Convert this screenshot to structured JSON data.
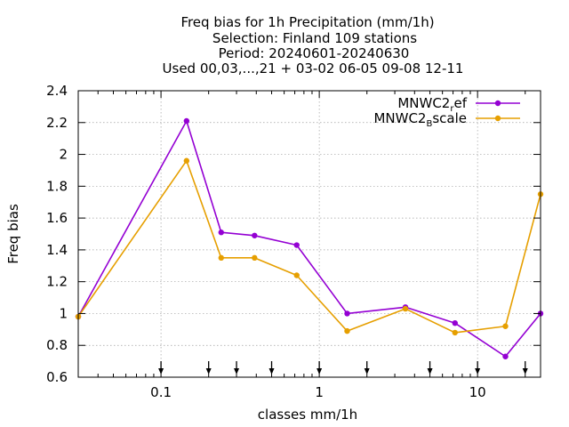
{
  "chart_data": {
    "type": "line",
    "title_lines": [
      "Freq bias  for 1h Precipitation (mm/1h)",
      "Selection: Finland     109 stations",
      "Period: 20240601-20240630",
      "Used 00,03,...,21 + 03-02 06-05 09-08 12-11"
    ],
    "xlabel": "classes mm/1h",
    "ylabel": "Freq bias",
    "xscale": "log",
    "xlim": [
      0.03,
      25
    ],
    "ylim": [
      0.6,
      2.4
    ],
    "xticks": [
      {
        "value": 0.1,
        "label": "0.1"
      },
      {
        "value": 1,
        "label": "1"
      },
      {
        "value": 10,
        "label": "10"
      }
    ],
    "yticks": [
      {
        "value": 0.6,
        "label": "0.6"
      },
      {
        "value": 0.8,
        "label": "0.8"
      },
      {
        "value": 1.0,
        "label": "1"
      },
      {
        "value": 1.2,
        "label": "1.2"
      },
      {
        "value": 1.4,
        "label": "1.4"
      },
      {
        "value": 1.6,
        "label": "1.6"
      },
      {
        "value": 1.8,
        "label": "1.8"
      },
      {
        "value": 2.0,
        "label": "2"
      },
      {
        "value": 2.2,
        "label": "2.2"
      },
      {
        "value": 2.4,
        "label": "2.4"
      }
    ],
    "grid": true,
    "legend_position": "top-right",
    "threshold_arrows_x": [
      0.1,
      0.2,
      0.3,
      0.5,
      1,
      2,
      5,
      10,
      20
    ],
    "x": [
      0.03,
      0.145,
      0.24,
      0.39,
      0.72,
      1.5,
      3.5,
      7.2,
      15,
      25
    ],
    "series": [
      {
        "name_main": "MNWC2",
        "name_sub": "r",
        "name_rest": "ef",
        "color": "#9400d3",
        "values": [
          0.98,
          2.21,
          1.51,
          1.49,
          1.43,
          1.0,
          1.04,
          0.94,
          0.73,
          1.0
        ]
      },
      {
        "name_main": "MNWC2",
        "name_sub": "B",
        "name_rest": "scale",
        "color": "#e69f00",
        "values": [
          0.98,
          1.96,
          1.35,
          1.35,
          1.24,
          0.89,
          1.03,
          0.88,
          0.92,
          1.75
        ]
      }
    ]
  }
}
